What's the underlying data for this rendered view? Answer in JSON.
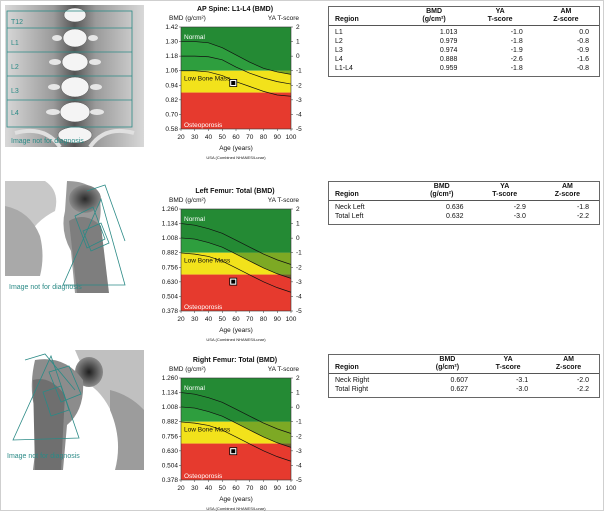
{
  "sections": [
    {
      "id": "spine",
      "scan": {
        "vertebra_labels": [
          "T12",
          "L1",
          "L2",
          "L3",
          "L4"
        ],
        "note": "Image not for diagnosis"
      },
      "chart": {
        "title": "AP Spine: L1-L4 (BMD)",
        "ylabel": "BMD (g/cm²)",
        "ylabel_right": "YA T-score",
        "xlabel": "Age (years)",
        "source": "USA (Combined NHANES/Lunar)",
        "y_ticks": [
          "1.42",
          "1.30",
          "1.18",
          "1.06",
          "0.94",
          "0.82",
          "0.70",
          "0.58"
        ],
        "t_ticks": [
          "2",
          "1",
          "0",
          "-1",
          "-2",
          "-3",
          "-4",
          "-5"
        ],
        "x_ticks": [
          "20",
          "30",
          "40",
          "50",
          "60",
          "70",
          "80",
          "90",
          "100"
        ],
        "zones": [
          "Normal",
          "Low Bone Mass",
          "Osteoporosis"
        ]
      },
      "results": {
        "headers": [
          "Region",
          "BMD\n(g/cm²)",
          "YA\nT-score",
          "AM\nZ-score"
        ],
        "rows": [
          [
            "L1",
            "1.013",
            "-1.0",
            "0.0"
          ],
          [
            "L2",
            "0.979",
            "-1.8",
            "-0.8"
          ],
          [
            "L3",
            "0.974",
            "-1.9",
            "-0.9"
          ],
          [
            "L4",
            "0.888",
            "-2.6",
            "-1.6"
          ],
          [
            "L1-L4",
            "0.959",
            "-1.8",
            "-0.8"
          ]
        ]
      }
    },
    {
      "id": "left-femur",
      "scan": {
        "note": "Image not for diagnosis"
      },
      "chart": {
        "title": "Left Femur: Total (BMD)",
        "ylabel": "BMD (g/cm²)",
        "ylabel_right": "YA T-score",
        "xlabel": "Age (years)",
        "source": "USA (Combined NHANES/Lunar)",
        "y_ticks": [
          "1.260",
          "1.134",
          "1.008",
          "0.882",
          "0.756",
          "0.630",
          "0.504",
          "0.378"
        ],
        "t_ticks": [
          "2",
          "1",
          "0",
          "-1",
          "-2",
          "-3",
          "-4",
          "-5"
        ],
        "x_ticks": [
          "20",
          "30",
          "40",
          "50",
          "60",
          "70",
          "80",
          "90",
          "100"
        ],
        "zones": [
          "Normal",
          "Low Bone Mass",
          "Osteoporosis"
        ]
      },
      "results": {
        "headers": [
          "Region",
          "BMD\n(g/cm²)",
          "YA\nT-score",
          "AM\nZ-score"
        ],
        "rows": [
          [
            "Neck Left",
            "0.636",
            "-2.9",
            "-1.8"
          ],
          [
            "Total Left",
            "0.632",
            "-3.0",
            "-2.2"
          ]
        ]
      }
    },
    {
      "id": "right-femur",
      "scan": {
        "note": "Image not for diagnosis"
      },
      "chart": {
        "title": "Right Femur: Total (BMD)",
        "ylabel": "BMD (g/cm²)",
        "ylabel_right": "YA T-score",
        "xlabel": "Age (years)",
        "source": "USA (Combined NHANES/Lunar)",
        "y_ticks": [
          "1.260",
          "1.134",
          "1.008",
          "0.882",
          "0.756",
          "0.630",
          "0.504",
          "0.378"
        ],
        "t_ticks": [
          "2",
          "1",
          "0",
          "-1",
          "-2",
          "-3",
          "-4",
          "-5"
        ],
        "x_ticks": [
          "20",
          "30",
          "40",
          "50",
          "60",
          "70",
          "80",
          "90",
          "100"
        ],
        "zones": [
          "Normal",
          "Low Bone Mass",
          "Osteoporosis"
        ]
      },
      "results": {
        "headers": [
          "Region",
          "BMD\n(g/cm²)",
          "YA\nT-score",
          "AM\nZ-score"
        ],
        "rows": [
          [
            "Neck Right",
            "0.607",
            "-3.1",
            "-2.0"
          ],
          [
            "Total Right",
            "0.627",
            "-3.0",
            "-2.2"
          ]
        ]
      }
    }
  ],
  "chart_data": [
    {
      "type": "scatter",
      "title": "AP Spine: L1-L4 (BMD)",
      "xlabel": "Age (years)",
      "ylabel": "BMD (g/cm²)",
      "xlim": [
        20,
        100
      ],
      "ylim": [
        0.58,
        1.42
      ],
      "zones": [
        {
          "name": "Normal",
          "color": "#2e9e3e",
          "tscore_min": -1
        },
        {
          "name": "Low Bone Mass",
          "color": "#f2e21b",
          "tscore_range": [
            -2.5,
            -1
          ]
        },
        {
          "name": "Osteoporosis",
          "color": "#e63a2e",
          "tscore_max": -2.5
        }
      ],
      "reference_curves": [
        {
          "x": [
            20,
            30,
            40,
            50,
            60,
            70,
            80,
            90,
            100
          ],
          "y": [
            1.18,
            1.18,
            1.175,
            1.15,
            1.09,
            1.04,
            1.0,
            0.97,
            0.95
          ]
        },
        {
          "x": [
            20,
            30,
            40,
            50,
            60,
            70,
            80,
            90,
            100
          ],
          "y": [
            1.3,
            1.3,
            1.29,
            1.25,
            1.19,
            1.13,
            1.08,
            1.05,
            1.03
          ]
        },
        {
          "x": [
            20,
            30,
            40,
            50,
            60,
            70,
            80,
            90,
            100
          ],
          "y": [
            1.06,
            1.06,
            1.05,
            1.02,
            0.97,
            0.93,
            0.89,
            0.86,
            0.85
          ]
        }
      ],
      "patient": {
        "x": 58,
        "y": 0.959
      }
    },
    {
      "type": "scatter",
      "title": "Left Femur: Total (BMD)",
      "xlabel": "Age (years)",
      "ylabel": "BMD (g/cm²)",
      "xlim": [
        20,
        100
      ],
      "ylim": [
        0.378,
        1.26
      ],
      "zones": [
        {
          "name": "Normal",
          "color": "#2e9e3e",
          "tscore_min": -1
        },
        {
          "name": "Low Bone Mass",
          "color": "#f2e21b",
          "tscore_range": [
            -2.5,
            -1
          ]
        },
        {
          "name": "Osteoporosis",
          "color": "#e63a2e",
          "tscore_max": -2.5
        }
      ],
      "reference_curves": [
        {
          "x": [
            20,
            30,
            40,
            50,
            60,
            70,
            80,
            90,
            100
          ],
          "y": [
            1.134,
            1.12,
            1.09,
            1.05,
            0.99,
            0.93,
            0.87,
            0.82,
            0.78
          ]
        },
        {
          "x": [
            20,
            30,
            40,
            50,
            60,
            70,
            80,
            90,
            100
          ],
          "y": [
            1.01,
            1.0,
            0.97,
            0.93,
            0.87,
            0.81,
            0.75,
            0.7,
            0.66
          ]
        },
        {
          "x": [
            20,
            30,
            40,
            50,
            60,
            70,
            80,
            90,
            100
          ],
          "y": [
            0.88,
            0.87,
            0.85,
            0.81,
            0.75,
            0.69,
            0.63,
            0.58,
            0.54
          ]
        }
      ],
      "patient": {
        "x": 58,
        "y": 0.632
      }
    },
    {
      "type": "scatter",
      "title": "Right Femur: Total (BMD)",
      "xlabel": "Age (years)",
      "ylabel": "BMD (g/cm²)",
      "xlim": [
        20,
        100
      ],
      "ylim": [
        0.378,
        1.26
      ],
      "zones": [
        {
          "name": "Normal",
          "color": "#2e9e3e",
          "tscore_min": -1
        },
        {
          "name": "Low Bone Mass",
          "color": "#f2e21b",
          "tscore_range": [
            -2.5,
            -1
          ]
        },
        {
          "name": "Osteoporosis",
          "color": "#e63a2e",
          "tscore_max": -2.5
        }
      ],
      "reference_curves": [
        {
          "x": [
            20,
            30,
            40,
            50,
            60,
            70,
            80,
            90,
            100
          ],
          "y": [
            1.134,
            1.12,
            1.09,
            1.05,
            0.99,
            0.93,
            0.87,
            0.82,
            0.78
          ]
        },
        {
          "x": [
            20,
            30,
            40,
            50,
            60,
            70,
            80,
            90,
            100
          ],
          "y": [
            1.01,
            1.0,
            0.97,
            0.93,
            0.87,
            0.81,
            0.75,
            0.7,
            0.66
          ]
        },
        {
          "x": [
            20,
            30,
            40,
            50,
            60,
            70,
            80,
            90,
            100
          ],
          "y": [
            0.88,
            0.87,
            0.85,
            0.81,
            0.75,
            0.69,
            0.63,
            0.58,
            0.54
          ]
        }
      ],
      "patient": {
        "x": 58,
        "y": 0.627
      }
    }
  ]
}
